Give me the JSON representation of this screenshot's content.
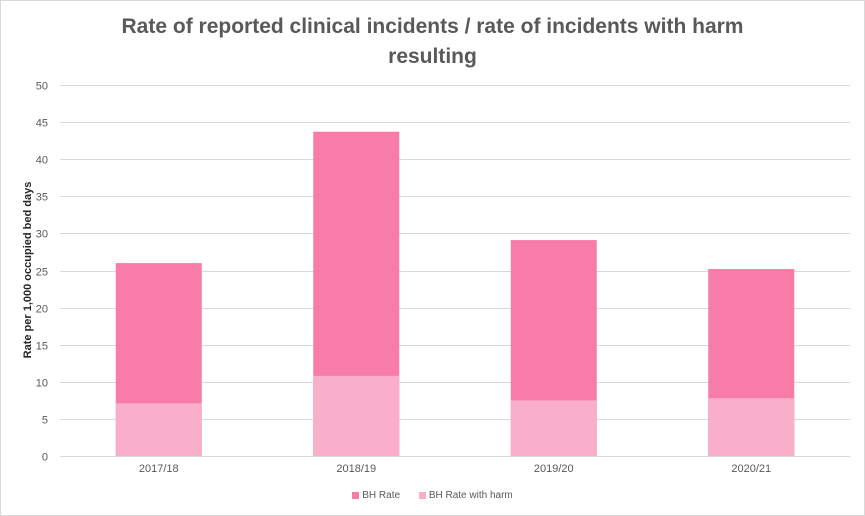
{
  "chart_data": {
    "type": "bar",
    "title": "Rate of reported clinical incidents / rate of incidents with harm resulting",
    "title_lines": [
      "Rate of reported clinical incidents / rate of incidents with harm",
      "resulting"
    ],
    "xlabel": "",
    "ylabel": "Rate per 1,000 occupied bed days",
    "ylim": [
      0,
      50
    ],
    "yticks": [
      0,
      5,
      10,
      15,
      20,
      25,
      30,
      35,
      40,
      45,
      50
    ],
    "grid": true,
    "legend_position": "bottom",
    "categories": [
      "2017/18",
      "2018/19",
      "2019/20",
      "2020/21"
    ],
    "series": [
      {
        "name": "BH Rate",
        "color": "#f77ca8",
        "values": [
          26.0,
          43.7,
          29.1,
          25.2
        ]
      },
      {
        "name": "BH Rate with harm",
        "color": "#f9aec9",
        "values": [
          7.1,
          10.8,
          7.5,
          7.8
        ]
      }
    ]
  }
}
